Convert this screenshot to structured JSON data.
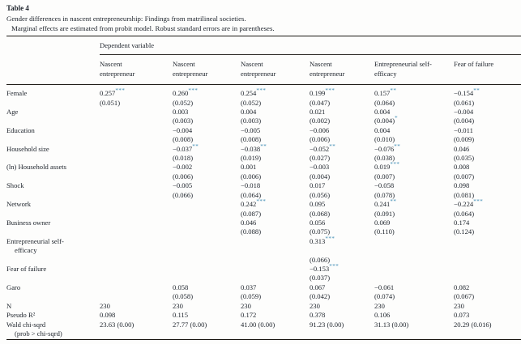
{
  "title": "Table 4",
  "caption": "Gender differences in nascent entrepreneurship: Findings from matrilineal societies.",
  "subcaption": "Marginal effects are estimated from probit model. Robust standard errors are in parentheses.",
  "colors": {
    "star_accent": "#3f8cb4",
    "text": "#20262e",
    "rule": "#1a1712",
    "background": "#fdfdfc"
  },
  "table": {
    "dependent_label": "Dependent variable",
    "columns": [
      [
        "Nascent",
        "entrepreneur"
      ],
      [
        "Nascent",
        "entrepreneur"
      ],
      [
        "Nascent",
        "entrepreneur"
      ],
      [
        "Nascent",
        "entrepreneur"
      ],
      [
        "Entrepreneurial self-",
        "efficacy"
      ],
      [
        "Fear of failure"
      ]
    ],
    "rows": [
      {
        "label": [
          "Female"
        ],
        "cells": [
          {
            "c": "0.257***",
            "se": "(0.051)"
          },
          {
            "c": "0.260***",
            "se": "(0.052)"
          },
          {
            "c": "0.254***",
            "se": "(0.052)"
          },
          {
            "c": "0.199***",
            "se": "(0.047)"
          },
          {
            "c": "0.157**",
            "se": "(0.064)"
          },
          {
            "c": "−0.154**",
            "se": "(0.061)"
          }
        ]
      },
      {
        "label": [
          "Age"
        ],
        "cells": [
          null,
          {
            "c": "0.003",
            "se": "(0.003)"
          },
          {
            "c": "0.004",
            "se": "(0.003)"
          },
          {
            "c": "0.021",
            "se": "(0.002)"
          },
          {
            "c": "0.004",
            "se": "(0.004)*"
          },
          {
            "c": "−0.004",
            "se": "(0.004)"
          }
        ]
      },
      {
        "label": [
          "Education"
        ],
        "cells": [
          null,
          {
            "c": "−0.004",
            "se": "(0.008)"
          },
          {
            "c": "−0.005",
            "se": "(0.008)"
          },
          {
            "c": "−0.006",
            "se": "(0.006)"
          },
          {
            "c": "0.004",
            "se": "(0.010)"
          },
          {
            "c": "−0.011",
            "se": "(0.009)"
          }
        ]
      },
      {
        "label": [
          "Household size"
        ],
        "cells": [
          null,
          {
            "c": "−0.037**",
            "se": "(0.018)"
          },
          {
            "c": "−0.038**",
            "se": "(0.019)"
          },
          {
            "c": "−0.052**",
            "se": "(0.027)"
          },
          {
            "c": "−0.076**",
            "se": "(0.038)"
          },
          {
            "c": "0.046",
            "se": "(0.035)"
          }
        ]
      },
      {
        "label": [
          "(ln) Household assets"
        ],
        "cells": [
          null,
          {
            "c": "−0.002",
            "se": "(0.006)"
          },
          {
            "c": "0.001",
            "se": "(0.006)"
          },
          {
            "c": "−0.003",
            "se": "(0.004)"
          },
          {
            "c": "0.019***",
            "se": "(0.007)"
          },
          {
            "c": "0.008",
            "se": "(0.007)"
          }
        ]
      },
      {
        "label": [
          "Shock"
        ],
        "cells": [
          null,
          {
            "c": "−0.005",
            "se": "(0.066)"
          },
          {
            "c": "−0.018",
            "se": "(0.064)"
          },
          {
            "c": "0.017",
            "se": "(0.056)"
          },
          {
            "c": "−0.058",
            "se": "(0.078)"
          },
          {
            "c": "0.098",
            "se": "(0.081)"
          }
        ]
      },
      {
        "label": [
          "Network"
        ],
        "cells": [
          null,
          null,
          {
            "c": "0.242***",
            "se": "(0.087)"
          },
          {
            "c": "0.095",
            "se": "(0.068)"
          },
          {
            "c": "0.241**",
            "se": "(0.091)"
          },
          {
            "c": "−0.224***",
            "se": "(0.064)"
          }
        ]
      },
      {
        "label": [
          "Business owner"
        ],
        "cells": [
          null,
          null,
          {
            "c": "0.046",
            "se": "(0.088)"
          },
          {
            "c": "0.056",
            "se": "(0.075)"
          },
          {
            "c": "0.069",
            "se": "(0.110)"
          },
          {
            "c": "0.174",
            "se": "(0.124)"
          }
        ]
      },
      {
        "label": [
          "Entrepreneurial self-",
          "efficacy"
        ],
        "se_gap": true,
        "cells": [
          null,
          null,
          null,
          {
            "c": "0.313***",
            "se": "(0.066)"
          },
          null,
          null
        ]
      },
      {
        "label": [
          "Fear of failure"
        ],
        "cells": [
          null,
          null,
          null,
          {
            "c": "−0.153***",
            "se": "(0.037)"
          },
          null,
          null
        ]
      },
      {
        "label": [
          "Garo"
        ],
        "cells": [
          null,
          {
            "c": "0.058",
            "se": "(0.058)"
          },
          {
            "c": "0.037",
            "se": "(0.059)"
          },
          {
            "c": "0.067",
            "se": "(0.042)"
          },
          {
            "c": "−0.061",
            "se": "(0.074)"
          },
          {
            "c": "0.082",
            "se": "(0.067)"
          }
        ]
      },
      {
        "label": [
          "N"
        ],
        "single": true,
        "cells": [
          "230",
          "230",
          "230",
          "230",
          "230",
          "230"
        ]
      },
      {
        "label": [
          "Pseudo R²"
        ],
        "single": true,
        "cells": [
          "0.098",
          "0.115",
          "0.172",
          "0.378",
          "0.106",
          "0.073"
        ]
      },
      {
        "label": [
          "Wald chi-sqrd",
          "(prob > chi-sqrd)"
        ],
        "cells": [
          "23.63 (0.00)",
          "27.77 (0.00)",
          "41.00 (0.00)",
          "91.23 (0.00)",
          "31.13 (0.00)",
          "20.29 (0.016)"
        ]
      }
    ]
  }
}
